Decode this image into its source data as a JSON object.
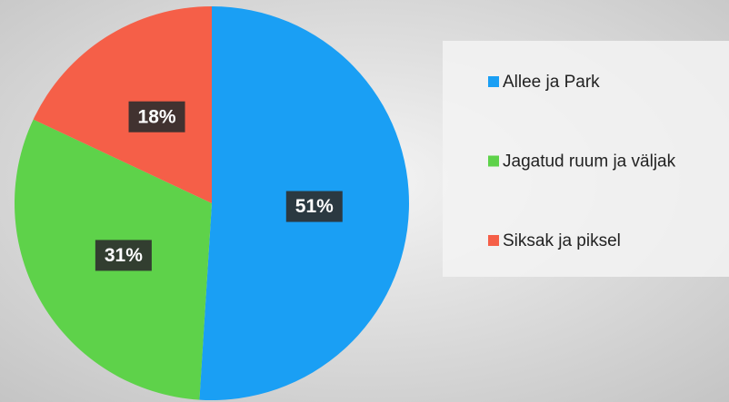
{
  "chart_data": {
    "type": "pie",
    "categories": [
      "Allee ja Park",
      "Jagatud ruum ja väljak",
      "Siksak ja piksel"
    ],
    "values": [
      51,
      31,
      18
    ],
    "value_labels": [
      "51%",
      "31%",
      "18%"
    ],
    "colors": [
      "#1a9ff4",
      "#5ed24a",
      "#f55f48"
    ]
  }
}
